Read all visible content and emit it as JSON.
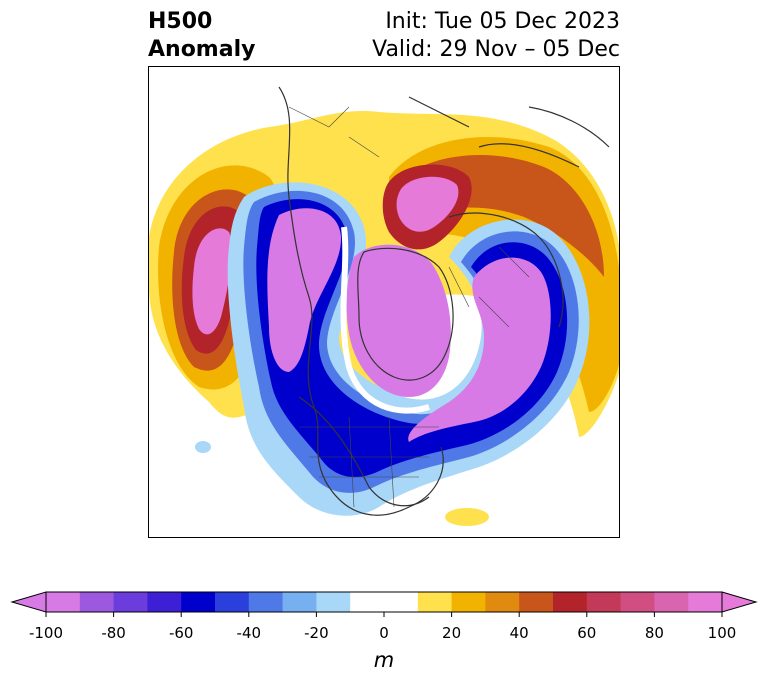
{
  "title": {
    "line1": "H500",
    "line2": "Anomaly"
  },
  "info": {
    "init": "Init: Tue 05 Dec 2023",
    "valid": "Valid: 29 Nov – 05 Dec"
  },
  "colorbar": {
    "unit": "m",
    "ticks": [
      "-100",
      "-80",
      "-60",
      "-40",
      "-20",
      "0",
      "20",
      "40",
      "60",
      "80",
      "100"
    ],
    "tick_values": [
      -100,
      -80,
      -60,
      -40,
      -20,
      0,
      20,
      40,
      60,
      80,
      100
    ],
    "range": [
      -100,
      100
    ],
    "step": 10,
    "colors": [
      "#d77ae6",
      "#9d58e0",
      "#6a3ddc",
      "#3d1fd6",
      "#0000cc",
      "#2b3fdc",
      "#4f79e6",
      "#77b0f0",
      "#a9d7f7",
      "#ffffff",
      "#ffffff",
      "#ffe14d",
      "#f2b300",
      "#e08a0f",
      "#c8561a",
      "#b2232a",
      "#c23a58",
      "#d04e82",
      "#d964b0",
      "#e57ad8"
    ]
  },
  "map": {
    "projection": "north-polar-stereographic",
    "palette": {
      "neg_extreme": "#d77ae6",
      "neg_strong": "#0000cc",
      "neg_moderate": "#4f79e6",
      "neg_weak": "#a9d7f7",
      "pos_weak": "#ffe14d",
      "pos_moderate": "#f2b300",
      "pos_strong": "#c8561a",
      "pos_very_strong": "#b2232a",
      "pos_extreme": "#e57ad8"
    }
  }
}
